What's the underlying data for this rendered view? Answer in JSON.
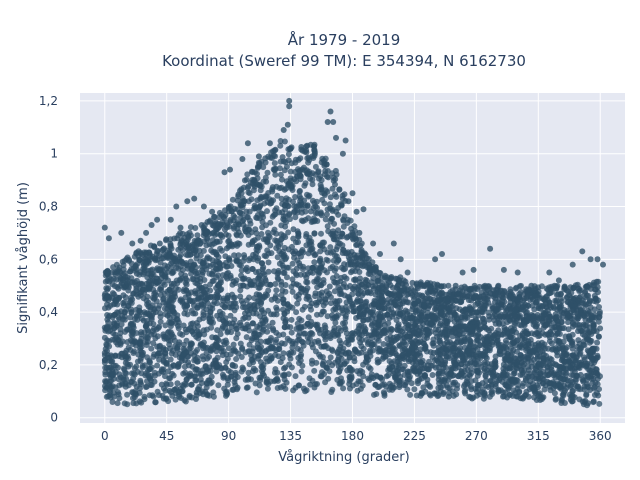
{
  "chart_data": {
    "type": "scatter",
    "title_line1": "År 1979 - 2019",
    "title_line2": "Koordinat (Sweref 99 TM): E 354394, N 6162730",
    "xlabel": "Vågriktning (grader)",
    "ylabel": "Signifikant våghöjd (m)",
    "xlim": [
      -18,
      378
    ],
    "ylim": [
      -0.02,
      1.23
    ],
    "xticks": [
      0,
      45,
      90,
      135,
      180,
      225,
      270,
      315,
      360
    ],
    "xtick_labels": [
      "0",
      "45",
      "90",
      "135",
      "180",
      "225",
      "270",
      "315",
      "360"
    ],
    "yticks": [
      0,
      0.2,
      0.4,
      0.6,
      0.8,
      1.0,
      1.2
    ],
    "ytick_labels": [
      "0",
      "0,2",
      "0,4",
      "0,6",
      "0,8",
      "1",
      "1,2"
    ],
    "grid": true,
    "marker_color": "#2f5068",
    "background_color": "#e5e8f2",
    "envelope": {
      "x": [
        0,
        20,
        45,
        60,
        75,
        90,
        100,
        110,
        120,
        130,
        140,
        150,
        160,
        170,
        180,
        190,
        200,
        225,
        250,
        270,
        290,
        315,
        340,
        360
      ],
      "ymax": [
        0.55,
        0.62,
        0.68,
        0.72,
        0.75,
        0.8,
        0.9,
        0.97,
        1.02,
        1.06,
        1.02,
        1.05,
        1.0,
        0.92,
        0.75,
        0.62,
        0.55,
        0.52,
        0.5,
        0.5,
        0.5,
        0.5,
        0.5,
        0.52
      ],
      "ymin": [
        0.04,
        0.05,
        0.06,
        0.06,
        0.07,
        0.08,
        0.08,
        0.09,
        0.1,
        0.1,
        0.1,
        0.1,
        0.1,
        0.09,
        0.08,
        0.08,
        0.08,
        0.08,
        0.08,
        0.07,
        0.07,
        0.06,
        0.05,
        0.04
      ]
    },
    "outliers": [
      [
        134,
        1.2
      ],
      [
        134,
        1.18
      ],
      [
        164,
        1.16
      ],
      [
        162,
        1.12
      ],
      [
        166,
        1.12
      ],
      [
        133,
        1.11
      ],
      [
        130,
        1.09
      ],
      [
        168,
        1.06
      ],
      [
        120,
        1.04
      ],
      [
        104,
        1.04
      ],
      [
        175,
        1.05
      ],
      [
        147,
        1.03
      ],
      [
        100,
        0.98
      ],
      [
        112,
        0.99
      ],
      [
        173,
        1.0
      ],
      [
        91,
        0.94
      ],
      [
        87,
        0.93
      ],
      [
        65,
        0.83
      ],
      [
        60,
        0.82
      ],
      [
        72,
        0.8
      ],
      [
        78,
        0.78
      ],
      [
        52,
        0.8
      ],
      [
        48,
        0.75
      ],
      [
        38,
        0.75
      ],
      [
        34,
        0.73
      ],
      [
        30,
        0.7
      ],
      [
        12,
        0.7
      ],
      [
        0,
        0.72
      ],
      [
        3,
        0.68
      ],
      [
        20,
        0.66
      ],
      [
        26,
        0.67
      ],
      [
        40,
        0.66
      ],
      [
        55,
        0.72
      ],
      [
        183,
        0.78
      ],
      [
        188,
        0.79
      ],
      [
        177,
        0.82
      ],
      [
        180,
        0.85
      ],
      [
        185,
        0.7
      ],
      [
        195,
        0.66
      ],
      [
        200,
        0.62
      ],
      [
        210,
        0.66
      ],
      [
        215,
        0.6
      ],
      [
        240,
        0.6
      ],
      [
        245,
        0.62
      ],
      [
        260,
        0.55
      ],
      [
        280,
        0.64
      ],
      [
        290,
        0.56
      ],
      [
        300,
        0.55
      ],
      [
        310,
        0.5
      ],
      [
        323,
        0.55
      ],
      [
        340,
        0.58
      ],
      [
        347,
        0.63
      ],
      [
        353,
        0.6
      ],
      [
        358,
        0.6
      ],
      [
        362,
        0.58
      ],
      [
        220,
        0.55
      ],
      [
        232,
        0.5
      ],
      [
        255,
        0.5
      ],
      [
        268,
        0.56
      ],
      [
        286,
        0.5
      ],
      [
        330,
        0.52
      ],
      [
        305,
        0.45
      ],
      [
        195,
        0.15
      ],
      [
        250,
        0.08
      ],
      [
        276,
        0.09
      ],
      [
        300,
        0.08
      ]
    ]
  }
}
